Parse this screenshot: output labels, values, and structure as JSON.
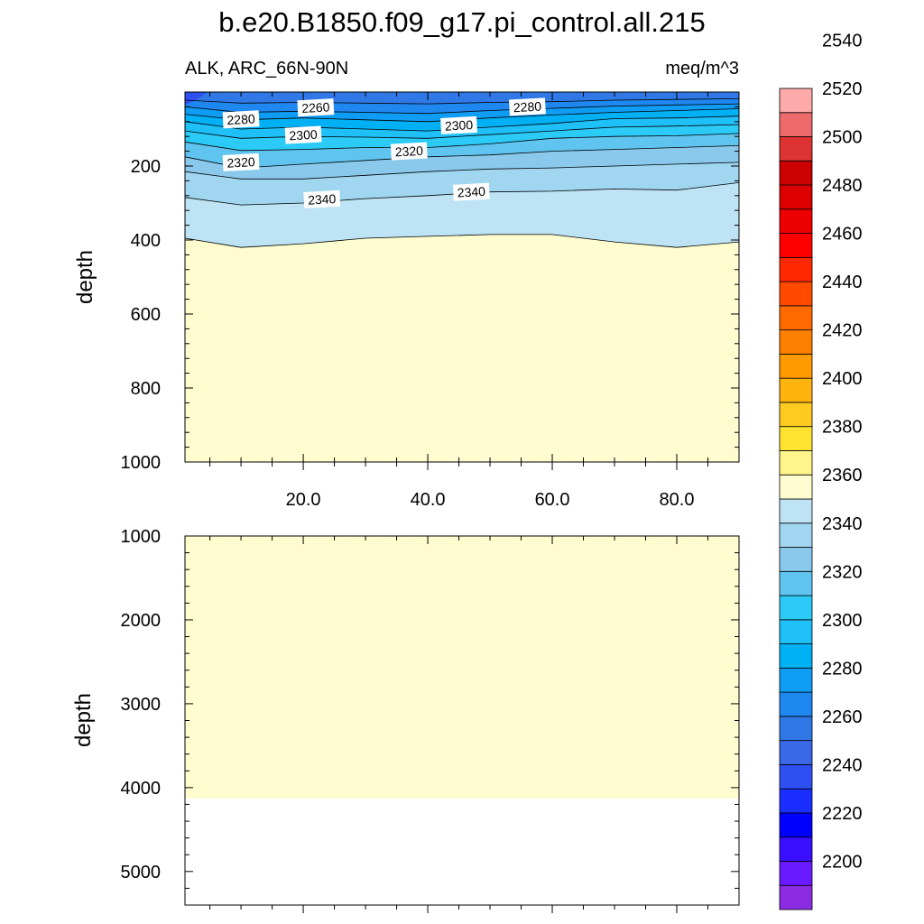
{
  "chart_data": {
    "type": "heatmap",
    "title": "b.e20.B1850.f09_g17.pi_control.all.215",
    "left_subtitle": "ALK, ARC_66N-90N",
    "right_subtitle": "meq/m^3",
    "xlabel": "",
    "ylabel": "depth",
    "x_ticks": [
      "20.0",
      "40.0",
      "60.0",
      "80.0"
    ],
    "xlim": [
      1,
      90
    ],
    "panels": [
      {
        "name": "upper",
        "ylim": [
          0,
          1000
        ],
        "y_ticks": [
          "200",
          "400",
          "600",
          "800",
          "1000"
        ],
        "contours": [
          {
            "level": 2260,
            "x": [
              1,
              10,
              20,
              30,
              40,
              50,
              60,
              70,
              80,
              90
            ],
            "depth": [
              22,
              30,
              28,
              30,
              32,
              28,
              26,
              22,
              20,
              18
            ]
          },
          {
            "level": 2270,
            "x": [
              1,
              10,
              20,
              30,
              40,
              50,
              60,
              70,
              80,
              90
            ],
            "depth": [
              40,
              55,
              52,
              55,
              58,
              50,
              44,
              38,
              35,
              32
            ]
          },
          {
            "level": 2280,
            "x": [
              1,
              10,
              20,
              30,
              40,
              50,
              60,
              70,
              80,
              90
            ],
            "depth": [
              60,
              75,
              70,
              75,
              80,
              70,
              62,
              55,
              50,
              45
            ]
          },
          {
            "level": 2290,
            "x": [
              1,
              10,
              20,
              30,
              40,
              50,
              60,
              70,
              80,
              90
            ],
            "depth": [
              80,
              100,
              95,
              100,
              105,
              95,
              85,
              72,
              70,
              65
            ]
          },
          {
            "level": 2300,
            "x": [
              1,
              10,
              20,
              30,
              40,
              50,
              60,
              70,
              80,
              90
            ],
            "depth": [
              105,
              125,
              120,
              122,
              125,
              115,
              105,
              95,
              92,
              88
            ]
          },
          {
            "level": 2310,
            "x": [
              1,
              10,
              20,
              30,
              40,
              50,
              60,
              70,
              80,
              90
            ],
            "depth": [
              135,
              158,
              155,
              150,
              150,
              140,
              125,
              120,
              118,
              112
            ]
          },
          {
            "level": 2320,
            "x": [
              1,
              10,
              20,
              30,
              40,
              50,
              60,
              70,
              80,
              90
            ],
            "depth": [
              175,
              205,
              195,
              185,
              175,
              170,
              160,
              155,
              150,
              145
            ]
          },
          {
            "level": 2330,
            "x": [
              1,
              10,
              20,
              30,
              40,
              50,
              60,
              70,
              80,
              90
            ],
            "depth": [
              215,
              235,
              235,
              225,
              215,
              208,
              205,
              200,
              195,
              190
            ]
          },
          {
            "level": 2340,
            "x": [
              1,
              10,
              20,
              30,
              40,
              50,
              60,
              70,
              80,
              90
            ],
            "depth": [
              285,
              305,
              300,
              288,
              280,
              270,
              268,
              262,
              265,
              245
            ]
          },
          {
            "level": 2350,
            "x": [
              1,
              10,
              20,
              30,
              40,
              50,
              60,
              70,
              80,
              90
            ],
            "depth": [
              395,
              420,
              410,
              395,
              390,
              385,
              385,
              405,
              420,
              405
            ]
          }
        ],
        "contour_labels": [
          {
            "text": "2260",
            "x": 22,
            "depth": 42
          },
          {
            "text": "2280",
            "x": 10,
            "depth": 74
          },
          {
            "text": "2300",
            "x": 20,
            "depth": 116
          },
          {
            "text": "2280",
            "x": 56,
            "depth": 40
          },
          {
            "text": "2300",
            "x": 45,
            "depth": 90
          },
          {
            "text": "2320",
            "x": 10,
            "depth": 190
          },
          {
            "text": "2320",
            "x": 37,
            "depth": 160
          },
          {
            "text": "2340",
            "x": 23,
            "depth": 290
          },
          {
            "text": "2340",
            "x": 47,
            "depth": 270
          }
        ]
      },
      {
        "name": "lower",
        "ylim": [
          1000,
          5400
        ],
        "y_ticks": [
          "1000",
          "2000",
          "3000",
          "4000",
          "5000"
        ],
        "fill_value": 2355,
        "seafloor_depth": 4130
      }
    ],
    "colorbar": {
      "min": 2190,
      "step": 10,
      "labels": [
        "2200",
        "2220",
        "2240",
        "2260",
        "2280",
        "2300",
        "2320",
        "2340",
        "2360",
        "2380",
        "2400",
        "2420",
        "2440",
        "2460",
        "2480",
        "2500",
        "2520",
        "2540"
      ],
      "colors": [
        "#8b2be2",
        "#6a1aff",
        "#3a0fff",
        "#0000ff",
        "#1a2eff",
        "#2e4ff2",
        "#3a68e6",
        "#2f78e6",
        "#1e87f0",
        "#0f9cf5",
        "#00b0f5",
        "#1fbff8",
        "#2ccbf7",
        "#60c4f0",
        "#8ac9ec",
        "#a0d6f0",
        "#bde3f4",
        "#fffdd0",
        "#fff58a",
        "#ffe330",
        "#ffcb20",
        "#ffb30f",
        "#ff9a00",
        "#ff8000",
        "#ff6a00",
        "#ff4a00",
        "#ff2800",
        "#ff0000",
        "#ee0000",
        "#dd0000",
        "#cc0000",
        "#dd3333",
        "#ee6b6b",
        "#ffaaaa"
      ]
    }
  }
}
